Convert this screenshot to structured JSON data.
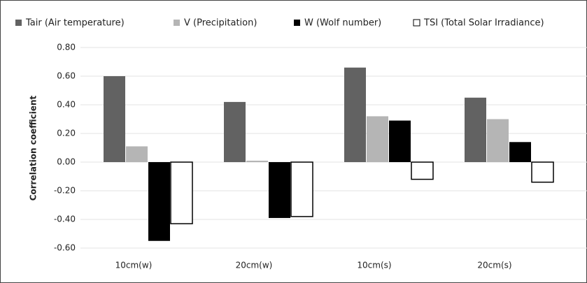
{
  "chart_data": {
    "type": "bar",
    "y_label": "Correlation coefficient",
    "categories": [
      "10cm(w)",
      "20cm(w)",
      "10cm(s)",
      "20cm(s)"
    ],
    "series": [
      {
        "name": "Tair (Air temperature)",
        "color": "#626262",
        "values": [
          0.6,
          0.42,
          0.66,
          0.45
        ]
      },
      {
        "name": "V (Precipitation)",
        "color": "#b5b5b5",
        "values": [
          0.11,
          0.01,
          0.32,
          0.3
        ]
      },
      {
        "name": "W (Wolf number)",
        "color": "#000000",
        "values": [
          -0.55,
          -0.39,
          0.29,
          0.14
        ]
      },
      {
        "name": "TSI (Total Solar Irradiance)",
        "color": "#ffffff",
        "values": [
          -0.43,
          -0.38,
          -0.12,
          -0.14
        ]
      }
    ],
    "ylim": [
      -0.6,
      0.8
    ],
    "yticks": [
      {
        "value": 0.8,
        "label": "0.80"
      },
      {
        "value": 0.6,
        "label": "0.60"
      },
      {
        "value": 0.4,
        "label": "0.40"
      },
      {
        "value": 0.2,
        "label": "0.20"
      },
      {
        "value": 0,
        "label": "0.00"
      },
      {
        "value": -0.2,
        "label": "-0.20"
      },
      {
        "value": -0.4,
        "label": "-0.40"
      },
      {
        "value": -0.6,
        "label": "-0.60"
      }
    ],
    "grid": true,
    "legend": "top"
  }
}
